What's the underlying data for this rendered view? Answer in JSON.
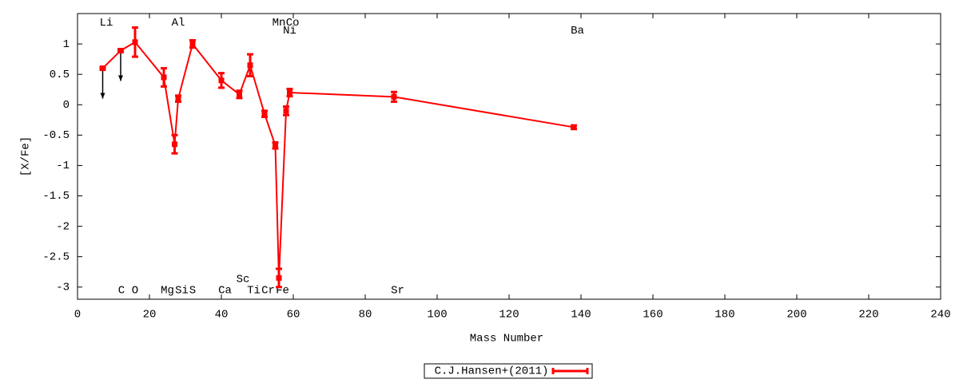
{
  "chart_data": {
    "type": "errorbar",
    "xlabel": "Mass Number",
    "ylabel": "[X/Fe]",
    "xlim": [
      0,
      240
    ],
    "ylim": [
      -3.2,
      1.5
    ],
    "xticks": [
      0,
      20,
      40,
      60,
      80,
      100,
      120,
      140,
      160,
      180,
      200,
      220,
      240
    ],
    "yticks": [
      1,
      0.5,
      0,
      -0.5,
      -1,
      -1.5,
      -2,
      -2.5,
      -3
    ],
    "legend": "bottom",
    "series": [
      {
        "name": "C.J.Hansen+(2011)",
        "color": "#ff0000",
        "x": [
          7,
          12,
          16,
          24,
          27,
          28,
          32,
          40,
          45,
          48,
          52,
          55,
          56,
          58,
          59,
          88,
          138
        ],
        "values": [
          0.6,
          0.89,
          1.03,
          0.45,
          -0.65,
          0.1,
          1.0,
          0.4,
          0.17,
          0.65,
          -0.15,
          -0.67,
          -2.85,
          -0.1,
          0.2,
          0.13,
          -0.37
        ],
        "errors": [
          0.02,
          0.02,
          0.24,
          0.15,
          0.15,
          0.05,
          0.06,
          0.12,
          0.06,
          0.18,
          0.05,
          0.05,
          0.15,
          0.07,
          0.06,
          0.08,
          0.03
        ],
        "upper_limits": [
          true,
          true,
          false,
          false,
          false,
          false,
          false,
          false,
          false,
          false,
          false,
          false,
          false,
          false,
          false,
          false,
          false
        ]
      }
    ],
    "annotations": [
      {
        "text": "Li",
        "x": 8,
        "y": 1.35
      },
      {
        "text": "Al",
        "x": 28,
        "y": 1.35
      },
      {
        "text": "Mn",
        "x": 56,
        "y": 1.35
      },
      {
        "text": "Co",
        "x": 59.8,
        "y": 1.35
      },
      {
        "text": "Ni",
        "x": 59,
        "y": 1.22
      },
      {
        "text": "Ba",
        "x": 139,
        "y": 1.22
      },
      {
        "text": "C",
        "x": 12.2,
        "y": -3.05
      },
      {
        "text": "O",
        "x": 16,
        "y": -3.05
      },
      {
        "text": "Mg",
        "x": 25,
        "y": -3.05
      },
      {
        "text": "Si",
        "x": 29,
        "y": -3.05
      },
      {
        "text": "S",
        "x": 32,
        "y": -3.05
      },
      {
        "text": "Ca",
        "x": 41,
        "y": -3.05
      },
      {
        "text": "Sc",
        "x": 46,
        "y": -2.87
      },
      {
        "text": "Ti",
        "x": 49,
        "y": -3.05
      },
      {
        "text": "Cr",
        "x": 53,
        "y": -3.05
      },
      {
        "text": "Fe",
        "x": 57,
        "y": -3.05
      },
      {
        "text": "Sr",
        "x": 89,
        "y": -3.05
      }
    ]
  }
}
